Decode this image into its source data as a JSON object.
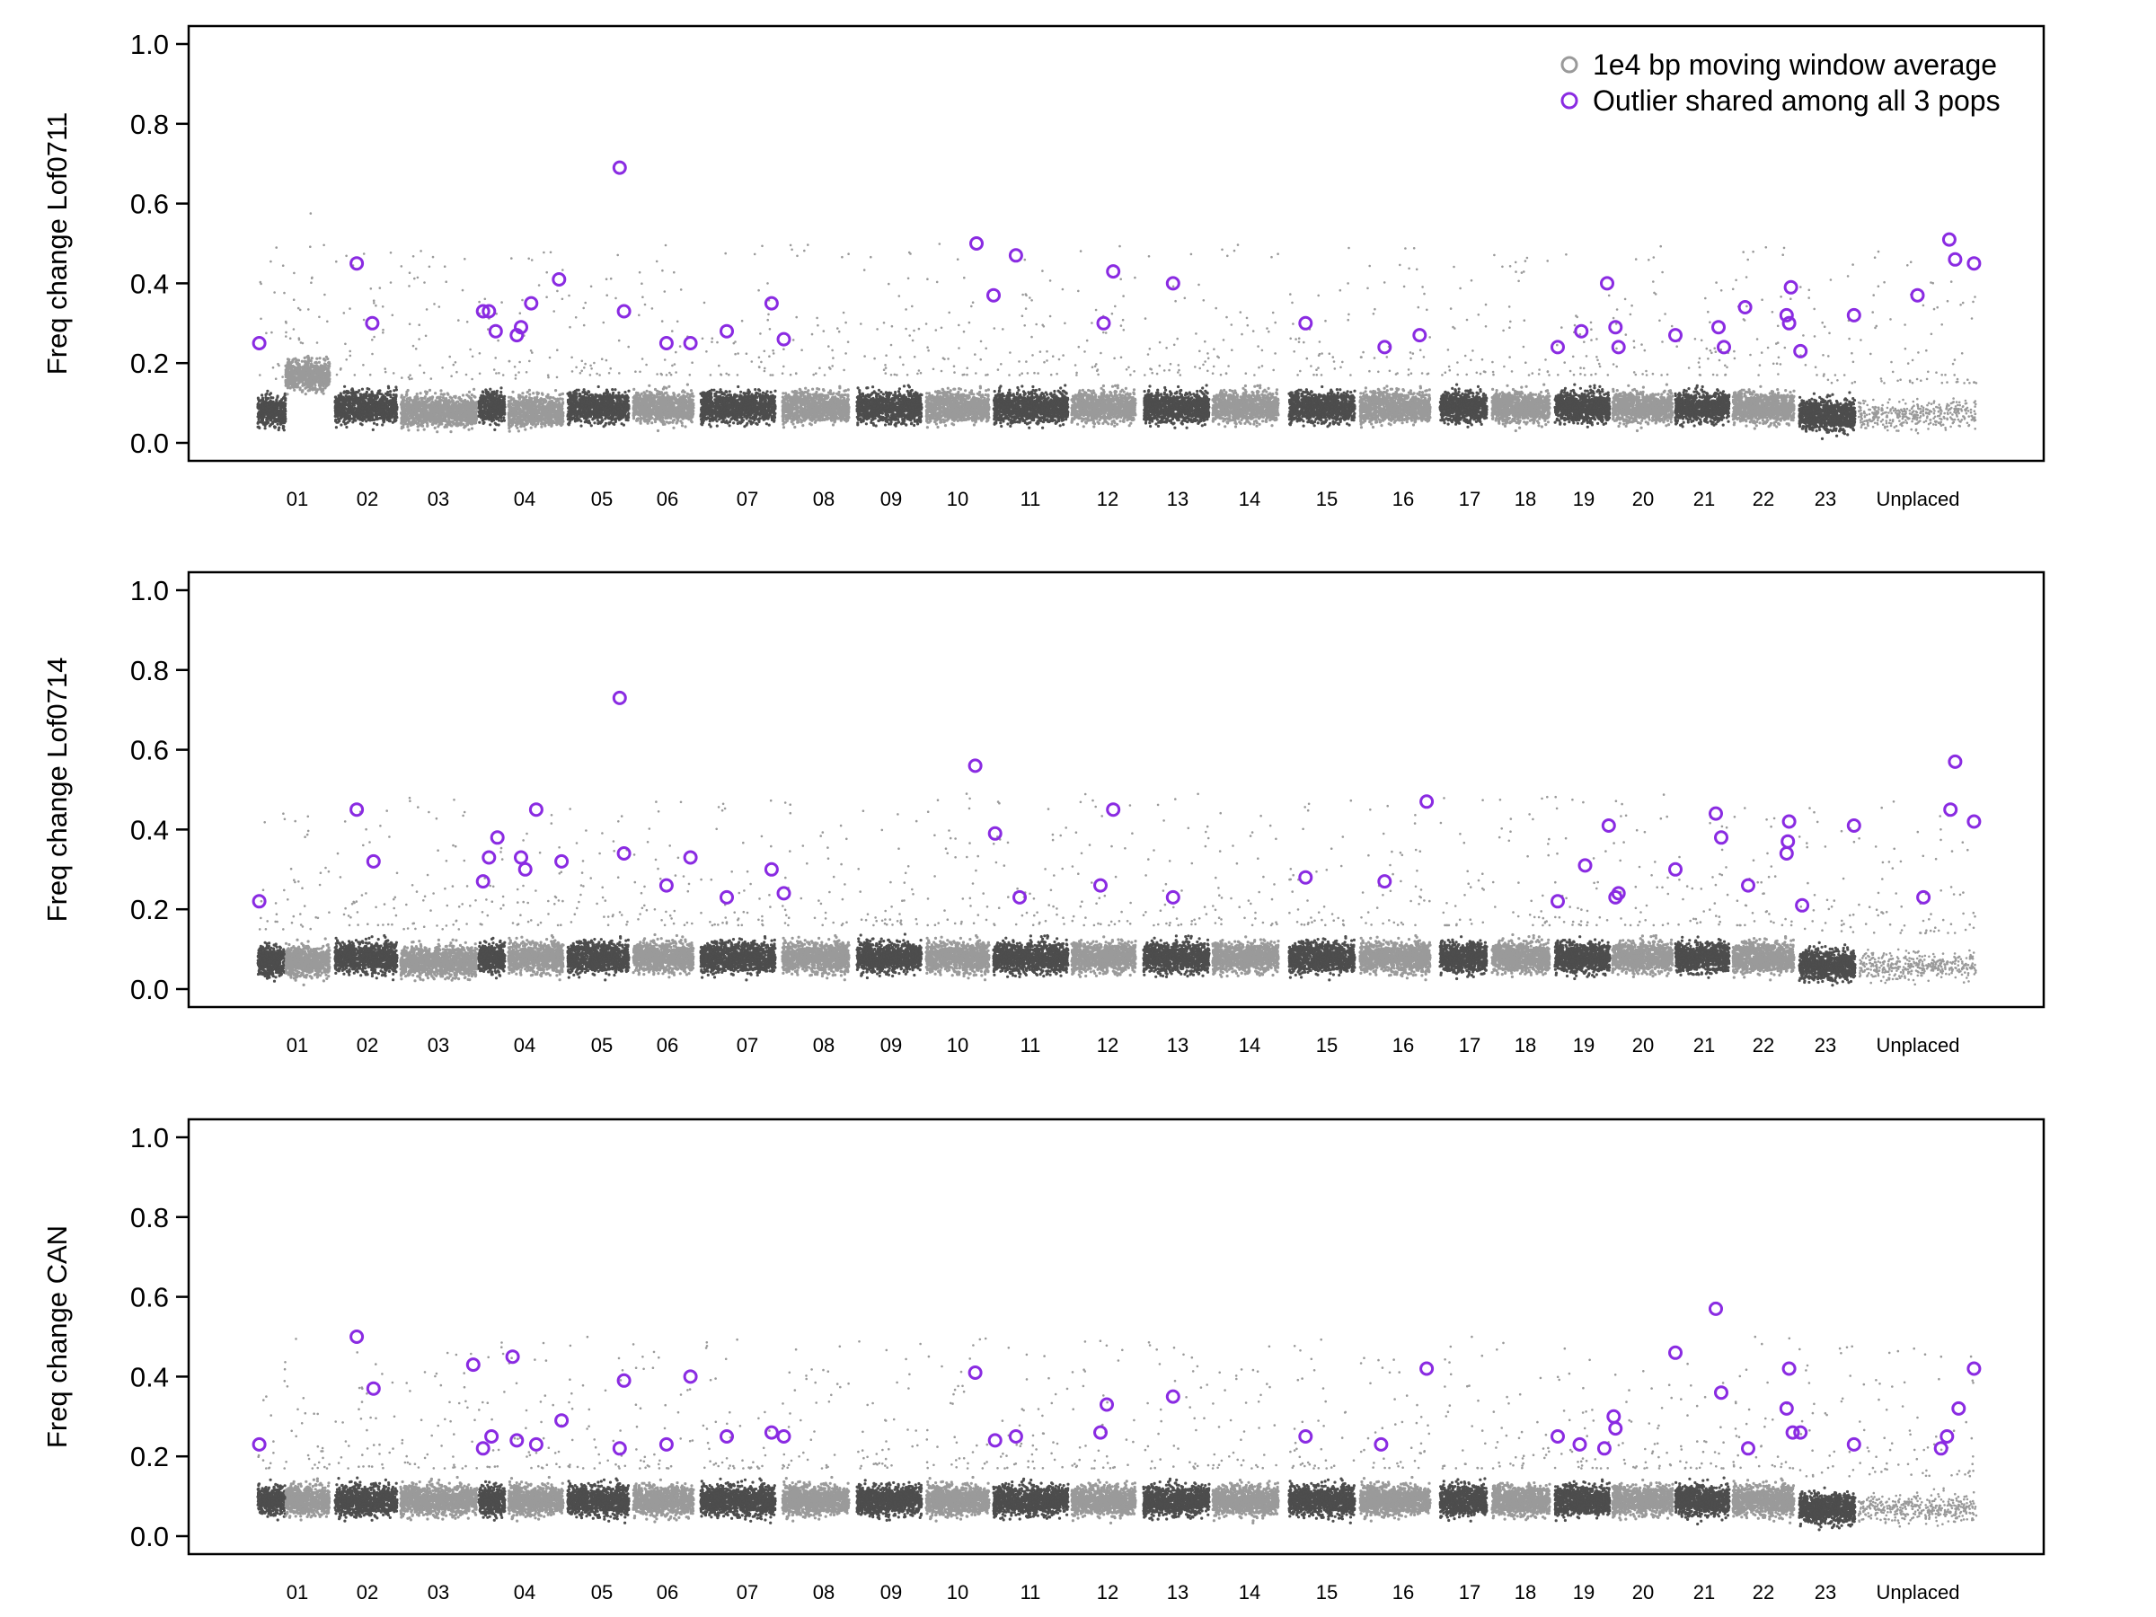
{
  "chart_data": {
    "type": "scatter",
    "x_categories": [
      "01",
      "02",
      "03",
      "04",
      "05",
      "06",
      "07",
      "08",
      "09",
      "10",
      "11",
      "12",
      "13",
      "14",
      "15",
      "16",
      "17",
      "18",
      "19",
      "20",
      "21",
      "22",
      "23",
      "Unplaced"
    ],
    "ylim": [
      0,
      1
    ],
    "yticks": [
      "0.0",
      "0.2",
      "0.4",
      "0.6",
      "0.8",
      "1.0"
    ],
    "grid": false,
    "legend_position": "top-right",
    "colors": {
      "dark": "#4d4d4d",
      "light": "#9a9a9a",
      "outlier": "#8a2be2"
    },
    "legend": [
      {
        "label": "1e4 bp moving window average",
        "marker": "grey-open-circle"
      },
      {
        "label": "Outlier shared among all 3 pops",
        "marker": "purple-open-circle"
      }
    ],
    "panels": [
      {
        "ylabel": "Freq change Lof0711",
        "background_median": [
          0.08,
          0.17,
          0.09,
          0.08,
          0.09,
          0.08,
          0.09,
          0.09,
          0.09,
          0.09,
          0.09,
          0.09,
          0.09,
          0.09,
          0.09,
          0.09,
          0.09,
          0.09,
          0.09,
          0.09,
          0.09,
          0.09,
          0.09,
          0.09,
          0.07
        ],
        "outliers": [
          {
            "chrom": "01",
            "pos": 0.02,
            "y": 0.25
          },
          {
            "chrom": "02",
            "pos": 0.35,
            "y": 0.45
          },
          {
            "chrom": "02",
            "pos": 0.6,
            "y": 0.3
          },
          {
            "chrom": "04",
            "pos": 0.05,
            "y": 0.33
          },
          {
            "chrom": "04",
            "pos": 0.12,
            "y": 0.33
          },
          {
            "chrom": "04",
            "pos": 0.2,
            "y": 0.28
          },
          {
            "chrom": "04",
            "pos": 0.45,
            "y": 0.27
          },
          {
            "chrom": "04",
            "pos": 0.5,
            "y": 0.29
          },
          {
            "chrom": "04",
            "pos": 0.62,
            "y": 0.35
          },
          {
            "chrom": "04",
            "pos": 0.95,
            "y": 0.41
          },
          {
            "chrom": "05",
            "pos": 0.85,
            "y": 0.69
          },
          {
            "chrom": "05",
            "pos": 0.92,
            "y": 0.33
          },
          {
            "chrom": "06",
            "pos": 0.55,
            "y": 0.25
          },
          {
            "chrom": "06",
            "pos": 0.95,
            "y": 0.25
          },
          {
            "chrom": "07",
            "pos": 0.35,
            "y": 0.28
          },
          {
            "chrom": "07",
            "pos": 0.95,
            "y": 0.35
          },
          {
            "chrom": "08",
            "pos": 0.02,
            "y": 0.26
          },
          {
            "chrom": "10",
            "pos": 0.8,
            "y": 0.5
          },
          {
            "chrom": "11",
            "pos": 0.0,
            "y": 0.37
          },
          {
            "chrom": "11",
            "pos": 0.3,
            "y": 0.47
          },
          {
            "chrom": "12",
            "pos": 0.5,
            "y": 0.3
          },
          {
            "chrom": "12",
            "pos": 0.65,
            "y": 0.43
          },
          {
            "chrom": "13",
            "pos": 0.45,
            "y": 0.4
          },
          {
            "chrom": "15",
            "pos": 0.25,
            "y": 0.3
          },
          {
            "chrom": "16",
            "pos": 0.35,
            "y": 0.24
          },
          {
            "chrom": "16",
            "pos": 0.85,
            "y": 0.27
          },
          {
            "chrom": "19",
            "pos": 0.05,
            "y": 0.24
          },
          {
            "chrom": "19",
            "pos": 0.48,
            "y": 0.28
          },
          {
            "chrom": "19",
            "pos": 0.95,
            "y": 0.4
          },
          {
            "chrom": "20",
            "pos": 0.05,
            "y": 0.29
          },
          {
            "chrom": "20",
            "pos": 0.1,
            "y": 0.24
          },
          {
            "chrom": "21",
            "pos": 0.0,
            "y": 0.27
          },
          {
            "chrom": "21",
            "pos": 0.8,
            "y": 0.29
          },
          {
            "chrom": "21",
            "pos": 0.9,
            "y": 0.24
          },
          {
            "chrom": "22",
            "pos": 0.2,
            "y": 0.34
          },
          {
            "chrom": "22",
            "pos": 0.88,
            "y": 0.32
          },
          {
            "chrom": "22",
            "pos": 0.92,
            "y": 0.3
          },
          {
            "chrom": "22",
            "pos": 0.95,
            "y": 0.39
          },
          {
            "chrom": "23",
            "pos": 0.02,
            "y": 0.23
          },
          {
            "chrom": "23",
            "pos": 0.98,
            "y": 0.32
          },
          {
            "chrom": "Unplaced",
            "pos": 0.5,
            "y": 0.37
          },
          {
            "chrom": "Unplaced",
            "pos": 0.77,
            "y": 0.51
          },
          {
            "chrom": "Unplaced",
            "pos": 0.82,
            "y": 0.46
          },
          {
            "chrom": "Unplaced",
            "pos": 0.98,
            "y": 0.45
          }
        ]
      },
      {
        "ylabel": "Freq change Lof0714",
        "background_median": [
          0.07,
          0.07,
          0.08,
          0.07,
          0.08,
          0.08,
          0.08,
          0.08,
          0.08,
          0.08,
          0.08,
          0.08,
          0.08,
          0.08,
          0.08,
          0.08,
          0.08,
          0.08,
          0.08,
          0.08,
          0.08,
          0.08,
          0.08,
          0.08,
          0.06
        ],
        "outliers": [
          {
            "chrom": "01",
            "pos": 0.02,
            "y": 0.22
          },
          {
            "chrom": "02",
            "pos": 0.35,
            "y": 0.45
          },
          {
            "chrom": "02",
            "pos": 0.62,
            "y": 0.32
          },
          {
            "chrom": "04",
            "pos": 0.05,
            "y": 0.27
          },
          {
            "chrom": "04",
            "pos": 0.12,
            "y": 0.33
          },
          {
            "chrom": "04",
            "pos": 0.22,
            "y": 0.38
          },
          {
            "chrom": "04",
            "pos": 0.5,
            "y": 0.33
          },
          {
            "chrom": "04",
            "pos": 0.55,
            "y": 0.3
          },
          {
            "chrom": "04",
            "pos": 0.68,
            "y": 0.45
          },
          {
            "chrom": "04",
            "pos": 0.98,
            "y": 0.32
          },
          {
            "chrom": "05",
            "pos": 0.85,
            "y": 0.73
          },
          {
            "chrom": "05",
            "pos": 0.92,
            "y": 0.34
          },
          {
            "chrom": "06",
            "pos": 0.55,
            "y": 0.26
          },
          {
            "chrom": "06",
            "pos": 0.95,
            "y": 0.33
          },
          {
            "chrom": "07",
            "pos": 0.35,
            "y": 0.23
          },
          {
            "chrom": "07",
            "pos": 0.95,
            "y": 0.3
          },
          {
            "chrom": "08",
            "pos": 0.02,
            "y": 0.24
          },
          {
            "chrom": "10",
            "pos": 0.78,
            "y": 0.56
          },
          {
            "chrom": "11",
            "pos": 0.02,
            "y": 0.39
          },
          {
            "chrom": "11",
            "pos": 0.35,
            "y": 0.23
          },
          {
            "chrom": "12",
            "pos": 0.45,
            "y": 0.26
          },
          {
            "chrom": "12",
            "pos": 0.65,
            "y": 0.45
          },
          {
            "chrom": "13",
            "pos": 0.45,
            "y": 0.23
          },
          {
            "chrom": "15",
            "pos": 0.25,
            "y": 0.28
          },
          {
            "chrom": "16",
            "pos": 0.35,
            "y": 0.27
          },
          {
            "chrom": "16",
            "pos": 0.95,
            "y": 0.47
          },
          {
            "chrom": "19",
            "pos": 0.05,
            "y": 0.22
          },
          {
            "chrom": "19",
            "pos": 0.55,
            "y": 0.31
          },
          {
            "chrom": "19",
            "pos": 0.98,
            "y": 0.41
          },
          {
            "chrom": "20",
            "pos": 0.05,
            "y": 0.23
          },
          {
            "chrom": "20",
            "pos": 0.1,
            "y": 0.24
          },
          {
            "chrom": "21",
            "pos": 0.0,
            "y": 0.3
          },
          {
            "chrom": "21",
            "pos": 0.75,
            "y": 0.44
          },
          {
            "chrom": "21",
            "pos": 0.85,
            "y": 0.38
          },
          {
            "chrom": "22",
            "pos": 0.25,
            "y": 0.26
          },
          {
            "chrom": "22",
            "pos": 0.88,
            "y": 0.34
          },
          {
            "chrom": "22",
            "pos": 0.9,
            "y": 0.37
          },
          {
            "chrom": "22",
            "pos": 0.92,
            "y": 0.42
          },
          {
            "chrom": "23",
            "pos": 0.05,
            "y": 0.21
          },
          {
            "chrom": "23",
            "pos": 0.98,
            "y": 0.41
          },
          {
            "chrom": "Unplaced",
            "pos": 0.55,
            "y": 0.23
          },
          {
            "chrom": "Unplaced",
            "pos": 0.78,
            "y": 0.45
          },
          {
            "chrom": "Unplaced",
            "pos": 0.82,
            "y": 0.57
          },
          {
            "chrom": "Unplaced",
            "pos": 0.98,
            "y": 0.42
          }
        ]
      },
      {
        "ylabel": "Freq change CAN",
        "background_median": [
          0.09,
          0.09,
          0.09,
          0.09,
          0.09,
          0.09,
          0.09,
          0.09,
          0.09,
          0.09,
          0.09,
          0.09,
          0.09,
          0.09,
          0.09,
          0.09,
          0.09,
          0.09,
          0.09,
          0.09,
          0.09,
          0.09,
          0.09,
          0.09,
          0.07
        ],
        "outliers": [
          {
            "chrom": "01",
            "pos": 0.02,
            "y": 0.23
          },
          {
            "chrom": "02",
            "pos": 0.35,
            "y": 0.5
          },
          {
            "chrom": "02",
            "pos": 0.62,
            "y": 0.37
          },
          {
            "chrom": "03",
            "pos": 0.95,
            "y": 0.43
          },
          {
            "chrom": "04",
            "pos": 0.05,
            "y": 0.22
          },
          {
            "chrom": "04",
            "pos": 0.15,
            "y": 0.25
          },
          {
            "chrom": "04",
            "pos": 0.4,
            "y": 0.45
          },
          {
            "chrom": "04",
            "pos": 0.45,
            "y": 0.24
          },
          {
            "chrom": "04",
            "pos": 0.68,
            "y": 0.23
          },
          {
            "chrom": "04",
            "pos": 0.98,
            "y": 0.29
          },
          {
            "chrom": "05",
            "pos": 0.85,
            "y": 0.22
          },
          {
            "chrom": "05",
            "pos": 0.92,
            "y": 0.39
          },
          {
            "chrom": "06",
            "pos": 0.55,
            "y": 0.23
          },
          {
            "chrom": "06",
            "pos": 0.95,
            "y": 0.4
          },
          {
            "chrom": "07",
            "pos": 0.35,
            "y": 0.25
          },
          {
            "chrom": "07",
            "pos": 0.95,
            "y": 0.26
          },
          {
            "chrom": "08",
            "pos": 0.02,
            "y": 0.25
          },
          {
            "chrom": "10",
            "pos": 0.78,
            "y": 0.41
          },
          {
            "chrom": "11",
            "pos": 0.02,
            "y": 0.24
          },
          {
            "chrom": "11",
            "pos": 0.3,
            "y": 0.25
          },
          {
            "chrom": "12",
            "pos": 0.45,
            "y": 0.26
          },
          {
            "chrom": "12",
            "pos": 0.55,
            "y": 0.33
          },
          {
            "chrom": "13",
            "pos": 0.45,
            "y": 0.35
          },
          {
            "chrom": "15",
            "pos": 0.25,
            "y": 0.25
          },
          {
            "chrom": "16",
            "pos": 0.3,
            "y": 0.23
          },
          {
            "chrom": "16",
            "pos": 0.95,
            "y": 0.42
          },
          {
            "chrom": "19",
            "pos": 0.05,
            "y": 0.25
          },
          {
            "chrom": "19",
            "pos": 0.45,
            "y": 0.23
          },
          {
            "chrom": "19",
            "pos": 0.9,
            "y": 0.22
          },
          {
            "chrom": "20",
            "pos": 0.02,
            "y": 0.3
          },
          {
            "chrom": "20",
            "pos": 0.05,
            "y": 0.27
          },
          {
            "chrom": "21",
            "pos": 0.0,
            "y": 0.46
          },
          {
            "chrom": "21",
            "pos": 0.75,
            "y": 0.57
          },
          {
            "chrom": "21",
            "pos": 0.85,
            "y": 0.36
          },
          {
            "chrom": "22",
            "pos": 0.25,
            "y": 0.22
          },
          {
            "chrom": "22",
            "pos": 0.88,
            "y": 0.32
          },
          {
            "chrom": "22",
            "pos": 0.92,
            "y": 0.42
          },
          {
            "chrom": "22",
            "pos": 0.98,
            "y": 0.26
          },
          {
            "chrom": "23",
            "pos": 0.02,
            "y": 0.26
          },
          {
            "chrom": "23",
            "pos": 0.98,
            "y": 0.23
          },
          {
            "chrom": "Unplaced",
            "pos": 0.7,
            "y": 0.22
          },
          {
            "chrom": "Unplaced",
            "pos": 0.75,
            "y": 0.25
          },
          {
            "chrom": "Unplaced",
            "pos": 0.85,
            "y": 0.32
          },
          {
            "chrom": "Unplaced",
            "pos": 0.98,
            "y": 0.42
          }
        ]
      }
    ]
  }
}
